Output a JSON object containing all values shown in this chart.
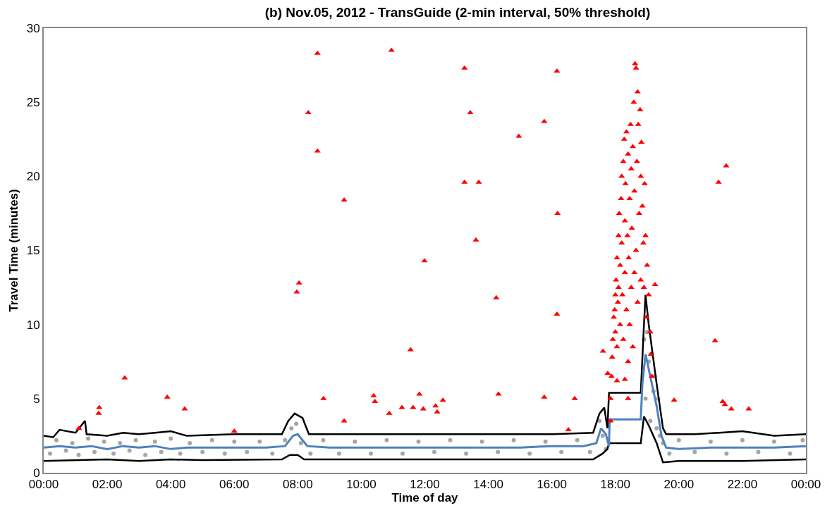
{
  "chart_data": {
    "type": "scatter",
    "title": "(b) Nov.05, 2012 - TransGuide (2-min interval, 50% threshold)",
    "xlabel": "Time of day",
    "ylabel": "Travel Time (minutes)",
    "xlim": [
      0,
      24
    ],
    "xticks": [
      {
        "value": 0,
        "label": "00:00"
      },
      {
        "value": 2,
        "label": "02:00"
      },
      {
        "value": 4,
        "label": "04:00"
      },
      {
        "value": 6,
        "label": "06:00"
      },
      {
        "value": 8,
        "label": "08:00"
      },
      {
        "value": 10,
        "label": "10:00"
      },
      {
        "value": 12,
        "label": "12:00"
      },
      {
        "value": 14,
        "label": "14:00"
      },
      {
        "value": 16,
        "label": "16:00"
      },
      {
        "value": 18,
        "label": "18:00"
      },
      {
        "value": 20,
        "label": "20:00"
      },
      {
        "value": 22,
        "label": "22:00"
      },
      {
        "value": 24,
        "label": "00:00"
      }
    ],
    "ylim": [
      0,
      30
    ],
    "yticks": [
      0,
      5,
      10,
      15,
      20,
      25,
      30
    ],
    "grid": false,
    "series": [
      {
        "type": "scatter",
        "marker": "circle",
        "color": "#a6a6a6",
        "x": [
          0.2,
          0.4,
          0.7,
          0.9,
          1.1,
          1.4,
          1.6,
          1.9,
          2.2,
          2.4,
          2.7,
          2.9,
          3.2,
          3.5,
          3.7,
          4.0,
          4.3,
          4.6,
          5.0,
          5.3,
          5.7,
          6.0,
          6.4,
          6.8,
          7.2,
          7.6,
          7.8,
          7.95,
          8.1,
          8.4,
          8.8,
          9.3,
          9.8,
          10.3,
          10.8,
          11.3,
          11.8,
          12.3,
          12.8,
          13.3,
          13.8,
          14.3,
          14.8,
          15.3,
          15.8,
          16.3,
          16.8,
          17.2,
          17.5,
          17.6,
          17.7,
          18.9,
          18.95,
          19.0,
          19.05,
          19.1,
          19.15,
          19.2,
          19.25,
          19.3,
          19.35,
          19.4,
          19.5,
          19.7,
          20.0,
          20.5,
          21.0,
          21.5,
          22.0,
          22.5,
          23.0,
          23.5,
          23.9
        ],
        "values": [
          1.3,
          2.2,
          1.5,
          2.0,
          1.2,
          2.3,
          1.4,
          2.1,
          1.3,
          2.0,
          1.5,
          2.2,
          1.2,
          2.1,
          1.4,
          2.3,
          1.3,
          2.0,
          1.4,
          2.2,
          1.3,
          2.1,
          1.4,
          2.1,
          1.3,
          2.2,
          3.0,
          3.3,
          2.0,
          1.3,
          2.2,
          1.3,
          2.1,
          1.3,
          2.2,
          1.3,
          2.1,
          1.4,
          2.2,
          1.3,
          2.1,
          1.4,
          2.2,
          1.3,
          2.1,
          1.4,
          2.2,
          1.4,
          3.5,
          2.5,
          1.6,
          9.0,
          5.0,
          9.5,
          7.5,
          3.5,
          8.0,
          5.5,
          6.5,
          3.0,
          5.0,
          2.5,
          2.0,
          1.3,
          2.2,
          1.4,
          2.1,
          1.3,
          2.2,
          1.4,
          2.1,
          1.3,
          2.2
        ]
      },
      {
        "type": "line",
        "marker": "none",
        "color": "#000000",
        "x": [
          0,
          0.3,
          0.5,
          1,
          1.3,
          1.35,
          2,
          2.5,
          3,
          3.5,
          4,
          4.5,
          6,
          7.5,
          7.7,
          7.9,
          8.15,
          8.35,
          10,
          12,
          14,
          16,
          17.3,
          17.5,
          17.65,
          17.75,
          17.8,
          18.8,
          18.9,
          18.95,
          19.05,
          19.3,
          19.5,
          19.6,
          20.5,
          22,
          23,
          24
        ],
        "values": [
          2.5,
          2.4,
          2.9,
          2.7,
          3.5,
          2.6,
          2.5,
          2.7,
          2.6,
          2.7,
          2.8,
          2.5,
          2.6,
          2.6,
          3.5,
          4.0,
          3.7,
          2.6,
          2.6,
          2.6,
          2.6,
          2.6,
          2.7,
          4.0,
          4.4,
          3.0,
          5.4,
          5.4,
          10.0,
          12.0,
          10.0,
          6.0,
          3.0,
          2.6,
          2.6,
          2.8,
          2.5,
          2.6
        ]
      },
      {
        "type": "line",
        "marker": "none",
        "color": "#000000",
        "x": [
          0,
          2,
          3,
          4,
          5,
          7.5,
          7.75,
          8.0,
          8.2,
          10,
          12,
          14,
          16,
          17.3,
          17.6,
          17.75,
          17.8,
          18.8,
          18.9,
          19.05,
          19.3,
          19.5,
          20,
          22,
          24
        ],
        "values": [
          0.8,
          0.9,
          0.8,
          0.9,
          0.85,
          0.9,
          1.2,
          1.2,
          0.9,
          0.9,
          0.9,
          0.9,
          0.9,
          0.9,
          1.3,
          1.6,
          2.0,
          2.0,
          3.8,
          3.2,
          2.0,
          0.7,
          0.8,
          0.8,
          0.9
        ]
      },
      {
        "type": "line",
        "marker": "none",
        "color": "#4f81bd",
        "x": [
          0,
          0.5,
          1,
          1.5,
          2,
          2.5,
          3,
          3.5,
          4,
          4.5,
          5,
          6,
          7,
          7.6,
          7.85,
          8.0,
          8.15,
          8.3,
          9,
          10,
          11,
          12,
          13,
          14,
          15,
          16,
          17,
          17.4,
          17.55,
          17.7,
          17.8,
          17.82,
          18.8,
          18.85,
          18.95,
          19.1,
          19.3,
          19.45,
          19.6,
          20,
          21,
          22,
          23,
          24
        ],
        "values": [
          1.7,
          1.8,
          1.7,
          1.8,
          1.6,
          1.8,
          1.7,
          1.8,
          1.6,
          1.7,
          1.7,
          1.7,
          1.7,
          1.8,
          2.5,
          2.6,
          2.2,
          1.8,
          1.7,
          1.7,
          1.7,
          1.7,
          1.7,
          1.7,
          1.7,
          1.8,
          1.8,
          2.0,
          3.0,
          2.6,
          1.8,
          3.6,
          3.6,
          6.0,
          8.0,
          6.5,
          4.5,
          2.5,
          1.7,
          1.6,
          1.7,
          1.7,
          1.7,
          1.8
        ]
      },
      {
        "type": "scatter",
        "marker": "triangle",
        "color": "#ff0000",
        "x": [
          1.11,
          1.75,
          1.73,
          2.55,
          3.89,
          4.44,
          6.0,
          7.97,
          8.04,
          8.33,
          8.62,
          8.62,
          8.81,
          9.46,
          9.46,
          10.39,
          10.43,
          10.88,
          10.95,
          11.28,
          11.55,
          11.63,
          11.83,
          11.95,
          11.99,
          12.34,
          12.39,
          12.57,
          13.25,
          13.25,
          13.43,
          13.61,
          13.7,
          14.25,
          14.32,
          14.96,
          15.76,
          15.76,
          16.16,
          16.18,
          16.16,
          16.52,
          16.72,
          17.61,
          17.76,
          19.25,
          19.85,
          21.14,
          21.25,
          21.49,
          21.38,
          21.45,
          21.65,
          22.2,
          17.85,
          17.85,
          17.88,
          17.9,
          17.92,
          17.95,
          17.98,
          18.0,
          18.0,
          18.02,
          18.05,
          18.05,
          18.08,
          18.1,
          18.1,
          18.12,
          18.15,
          18.15,
          18.18,
          18.2,
          18.2,
          18.22,
          18.25,
          18.25,
          18.28,
          18.3,
          18.3,
          18.32,
          18.35,
          18.35,
          18.38,
          18.4,
          18.4,
          18.42,
          18.45,
          18.45,
          18.48,
          18.5,
          18.5,
          18.52,
          18.55,
          18.55,
          18.58,
          18.6,
          18.6,
          18.62,
          18.65,
          18.65,
          18.68,
          18.7,
          18.7,
          18.72,
          18.75,
          18.78,
          18.8,
          18.8,
          18.82,
          18.85,
          18.88,
          18.9,
          18.92,
          18.95,
          18.98,
          19.0,
          19.05,
          19.1,
          19.12,
          19.15,
          18.05,
          18.3,
          18.4
        ],
        "values": [
          3.0,
          4.4,
          4.0,
          6.4,
          5.1,
          4.3,
          2.8,
          12.2,
          12.8,
          24.3,
          21.7,
          28.3,
          5.0,
          18.4,
          3.5,
          5.2,
          4.8,
          4.0,
          28.5,
          4.4,
          8.3,
          4.4,
          5.3,
          4.3,
          14.3,
          4.5,
          4.1,
          4.9,
          27.3,
          19.6,
          24.3,
          15.7,
          19.6,
          11.8,
          5.3,
          22.7,
          23.7,
          5.1,
          27.1,
          17.5,
          10.7,
          2.9,
          5.0,
          8.2,
          6.7,
          12.7,
          4.9,
          8.9,
          19.6,
          20.7,
          4.8,
          4.6,
          4.3,
          4.3,
          3.5,
          5.0,
          6.5,
          7.8,
          9.0,
          10.5,
          11.0,
          12.0,
          9.5,
          13.0,
          14.5,
          8.5,
          11.5,
          16.0,
          12.5,
          17.5,
          10.0,
          14.0,
          18.5,
          20.0,
          15.5,
          12.0,
          21.0,
          9.0,
          22.5,
          17.0,
          13.5,
          19.5,
          23.0,
          11.0,
          16.0,
          21.5,
          7.5,
          14.5,
          18.5,
          10.0,
          23.5,
          20.5,
          12.5,
          16.5,
          22.0,
          8.5,
          25.0,
          19.0,
          13.5,
          27.6,
          27.3,
          15.0,
          21.0,
          25.7,
          11.5,
          23.5,
          17.5,
          24.5,
          20.0,
          13.0,
          22.3,
          18.0,
          15.5,
          12.5,
          19.5,
          16.0,
          10.5,
          14.0,
          12.0,
          9.5,
          8.0,
          6.5,
          6.2,
          6.3,
          5.0
        ]
      }
    ]
  }
}
